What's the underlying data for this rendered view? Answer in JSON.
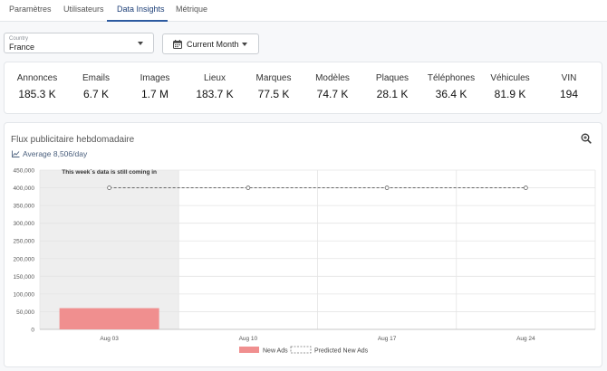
{
  "tabs": [
    {
      "label": "Paramètres"
    },
    {
      "label": "Utilisateurs"
    },
    {
      "label": "Data Insights"
    },
    {
      "label": "Métrique"
    }
  ],
  "filters": {
    "country_label": "Country",
    "country_value": "France",
    "period_label": "Current Month"
  },
  "stats": [
    {
      "label": "Annonces",
      "value": "185.3 K"
    },
    {
      "label": "Emails",
      "value": "6.7 K"
    },
    {
      "label": "Images",
      "value": "1.7 M"
    },
    {
      "label": "Lieux",
      "value": "183.7 K"
    },
    {
      "label": "Marques",
      "value": "77.5 K"
    },
    {
      "label": "Modèles",
      "value": "74.7 K"
    },
    {
      "label": "Plaques",
      "value": "28.1 K"
    },
    {
      "label": "Téléphones",
      "value": "36.4 K"
    },
    {
      "label": "Véhicules",
      "value": "81.9 K"
    },
    {
      "label": "VIN",
      "value": "194"
    }
  ],
  "chart_card": {
    "title": "Flux publicitaire hebdomadaire",
    "average": "Average 8,506/day",
    "icon": "zoom-in-icon"
  },
  "chart_data": {
    "type": "bar",
    "categories": [
      "Aug 03",
      "Aug 10",
      "Aug 17",
      "Aug 24"
    ],
    "series": [
      {
        "name": "New Ads",
        "values": [
          60000,
          0,
          0,
          0
        ],
        "color": "#f08f8f"
      },
      {
        "name": "Predicted New Ads",
        "type": "line",
        "values": [
          400000,
          400000,
          400000,
          400000
        ],
        "color": "#666666"
      }
    ],
    "ylim": [
      0,
      450000
    ],
    "yticks": [
      "0",
      "50,000",
      "100,000",
      "150,000",
      "200,000",
      "250,000",
      "300,000",
      "350,000",
      "400,000",
      "450,000"
    ],
    "annotation": "This week´s data is still coming in",
    "grid": true,
    "legend": "bottom-center"
  }
}
